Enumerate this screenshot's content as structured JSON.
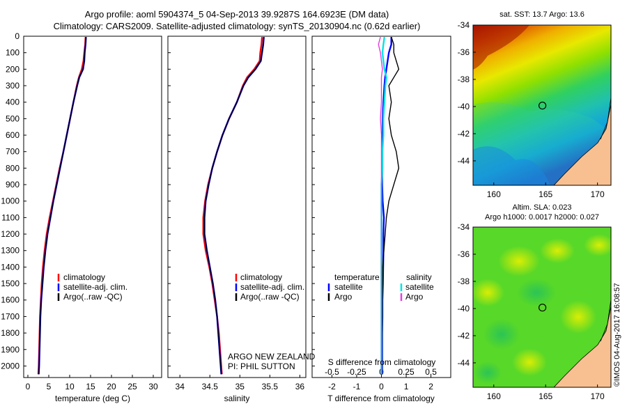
{
  "header": {
    "title_line1": "Argo profile: aoml 5904374_5 04-Sep-2013 39.9287S 164.6923E (DM data)",
    "title_line2": "Climatology: CARS2009. Satellite-adjusted climatology: synTS_20130904.nc (0.62d earlier)"
  },
  "stamp": "©IMOS 04-Aug-2017 16:08:57",
  "colors": {
    "climatology": "#ff0000",
    "satellite": "#0000ff",
    "argo": "#000000",
    "salinity_satellite": "#00e5e5",
    "salinity_argo": "#e040e0"
  },
  "chart_data": [
    {
      "type": "line",
      "id": "temperature",
      "xlabel": "temperature (deg C)",
      "xlim": [
        -1,
        32
      ],
      "ylim": [
        2070,
        0
      ],
      "xticks": [
        0,
        5,
        10,
        15,
        20,
        25,
        30
      ],
      "yticks": [
        0,
        100,
        200,
        300,
        400,
        500,
        600,
        700,
        800,
        900,
        1000,
        1100,
        1200,
        1300,
        1400,
        1500,
        1600,
        1700,
        1800,
        1900,
        2000
      ],
      "depth": [
        5,
        50,
        100,
        150,
        200,
        250,
        300,
        400,
        500,
        600,
        700,
        800,
        900,
        1000,
        1100,
        1200,
        1300,
        1400,
        1500,
        1600,
        1700,
        1800,
        1900,
        2000,
        2050
      ],
      "series": [
        {
          "name": "climatology",
          "color": "#ff0000",
          "values": [
            13.8,
            13.7,
            13.5,
            13.3,
            12.9,
            12.2,
            11.7,
            10.9,
            10.1,
            9.3,
            8.5,
            7.6,
            6.8,
            6.0,
            5.2,
            4.5,
            4.0,
            3.6,
            3.3,
            3.1,
            2.9,
            2.8,
            2.7,
            2.6,
            2.5
          ]
        },
        {
          "name": "satellite-adj. clim.",
          "color": "#0000ff",
          "values": [
            13.9,
            13.8,
            13.6,
            13.5,
            13.2,
            12.3,
            11.8,
            10.9,
            10.1,
            9.3,
            8.5,
            7.7,
            6.9,
            6.1,
            5.4,
            4.7,
            4.2,
            3.8,
            3.5,
            3.2,
            3.0,
            2.9,
            2.8,
            2.7,
            2.6
          ]
        },
        {
          "name": "Argo(..raw -QC)",
          "color": "#000000",
          "values": [
            13.9,
            13.8,
            13.6,
            13.5,
            13.2,
            12.3,
            11.8,
            10.9,
            10.1,
            9.3,
            8.5,
            7.7,
            6.9,
            6.1,
            5.4,
            4.7,
            4.2,
            3.8,
            3.5,
            3.2,
            3.0,
            2.9,
            2.8,
            2.7,
            2.6
          ]
        }
      ]
    },
    {
      "type": "line",
      "id": "salinity",
      "xlabel": "salinity",
      "xlim": [
        33.8,
        36.1
      ],
      "ylim": [
        2070,
        0
      ],
      "xticks": [
        34,
        34.5,
        35,
        35.5,
        36
      ],
      "depth": [
        5,
        50,
        100,
        150,
        200,
        250,
        300,
        400,
        500,
        600,
        700,
        800,
        900,
        1000,
        1100,
        1200,
        1300,
        1400,
        1500,
        1600,
        1700,
        1800,
        1900,
        2000,
        2050
      ],
      "series": [
        {
          "name": "climatology",
          "color": "#ff0000",
          "values": [
            35.37,
            35.36,
            35.34,
            35.33,
            35.24,
            35.12,
            35.05,
            34.95,
            34.82,
            34.71,
            34.62,
            34.54,
            34.47,
            34.42,
            34.39,
            34.39,
            34.43,
            34.49,
            34.54,
            34.58,
            34.62,
            34.65,
            34.67,
            34.69,
            34.7
          ]
        },
        {
          "name": "satellite-adj. clim.",
          "color": "#0000ff",
          "values": [
            35.4,
            35.39,
            35.37,
            35.35,
            35.26,
            35.14,
            35.06,
            34.95,
            34.82,
            34.71,
            34.62,
            34.54,
            34.48,
            34.43,
            34.41,
            34.41,
            34.45,
            34.5,
            34.55,
            34.59,
            34.62,
            34.64,
            34.66,
            34.68,
            34.69
          ]
        },
        {
          "name": "Argo(..raw -QC)",
          "color": "#000000",
          "values": [
            35.4,
            35.39,
            35.37,
            35.35,
            35.26,
            35.14,
            35.06,
            34.95,
            34.82,
            34.71,
            34.62,
            34.54,
            34.48,
            34.43,
            34.41,
            34.41,
            34.45,
            34.5,
            34.55,
            34.59,
            34.62,
            34.64,
            34.66,
            34.68,
            34.69
          ]
        }
      ]
    },
    {
      "type": "line",
      "id": "difference",
      "xlabel": "T difference from climatology",
      "top_label": "S difference from climatology",
      "xlim": [
        -2.8,
        2.8
      ],
      "ylim": [
        2070,
        0
      ],
      "xticks": [
        -2,
        -1,
        0,
        1,
        2
      ],
      "top_xticks": [
        -0.5,
        -0.25,
        0,
        0.25,
        0.5
      ],
      "depth": [
        5,
        50,
        100,
        150,
        200,
        250,
        300,
        400,
        500,
        600,
        700,
        800,
        900,
        1000,
        1100,
        1200,
        1300,
        1400,
        1500,
        1600,
        1700,
        1800,
        1900,
        2000,
        2050
      ],
      "legend_groups": [
        "temperature",
        "salinity"
      ],
      "series": [
        {
          "group": "temperature",
          "name": "satellite",
          "color": "#0000ff",
          "values": [
            0.4,
            0.4,
            0.3,
            0.25,
            0.2,
            0.15,
            0.12,
            0.08,
            0.05,
            0.05,
            0.03,
            0.03,
            0.03,
            0.05,
            0.1,
            0.08,
            0.08,
            0.07,
            0.06,
            0.04,
            0.04,
            0.03,
            0.03,
            0.03,
            0.03
          ]
        },
        {
          "group": "temperature",
          "name": "Argo",
          "color": "#000000",
          "values": [
            0.4,
            0.5,
            0.5,
            0.6,
            0.7,
            0.5,
            0.3,
            0.4,
            0.3,
            0.4,
            0.6,
            0.7,
            0.5,
            0.3,
            0.2,
            0.15,
            0.1,
            0.05,
            0.05,
            0.04,
            0.04,
            0.03,
            0.02,
            0.02,
            0.02
          ]
        },
        {
          "group": "salinity",
          "name": "satellite",
          "color": "#00e5e5",
          "values": [
            0.03,
            0.02,
            0.01,
            0.02,
            0.03,
            0.05,
            0.04,
            0.03,
            0.02,
            0.02,
            0.01,
            0.01,
            0.0,
            0.0,
            0.0,
            0.0,
            0.0,
            0.0,
            0.0,
            0.0,
            0.0,
            0.0,
            0.0,
            0.0,
            0.0
          ]
        },
        {
          "group": "salinity",
          "name": "Argo",
          "color": "#e040e0",
          "values": [
            -0.01,
            -0.03,
            -0.01,
            0.0,
            0.01,
            0.0,
            0.0,
            0.0,
            -0.01,
            0.0,
            0.0,
            0.0,
            0.0,
            0.0,
            0.0,
            0.0,
            0.0,
            0.0,
            0.0,
            0.0,
            0.0,
            0.0,
            0.0,
            0.0,
            0.0
          ]
        }
      ]
    },
    {
      "type": "heatmap",
      "id": "sst_map",
      "title": "sat. SST: 13.7  Argo: 13.6",
      "xlim": [
        158,
        171.3
      ],
      "ylim": [
        -45.8,
        -34
      ],
      "xticks": [
        160,
        165,
        170
      ],
      "yticks": [
        -34,
        -36,
        -38,
        -40,
        -42,
        -44
      ],
      "marker": {
        "lon": 164.69,
        "lat": -39.93
      }
    },
    {
      "type": "heatmap",
      "id": "sla_map",
      "title_line1": "Altim. SLA: 0.023",
      "title_line2": "Argo h1000: 0.0017  h2000: 0.027",
      "xlim": [
        158,
        171.3
      ],
      "ylim": [
        -45.8,
        -34
      ],
      "xticks": [
        160,
        165,
        170
      ],
      "yticks": [
        -34,
        -36,
        -38,
        -40,
        -42,
        -44
      ],
      "marker": {
        "lon": 164.69,
        "lat": -39.93
      }
    }
  ],
  "annotations": {
    "float_program": "ARGO NEW ZEALAND",
    "pi": "PI: PHIL SUTTON"
  }
}
